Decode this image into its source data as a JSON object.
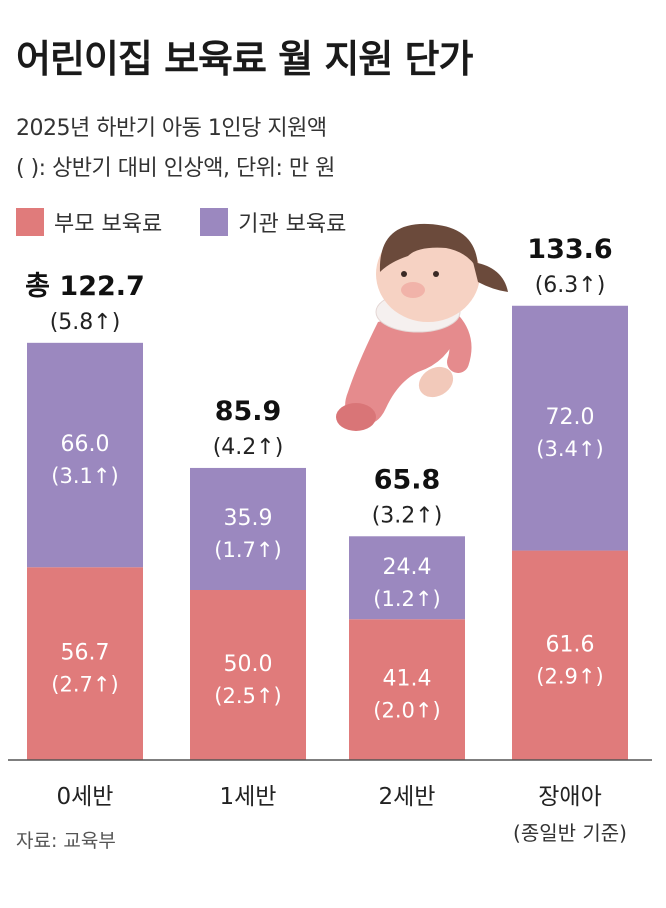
{
  "title": "어린이집 보육료 월 지원 단가",
  "subtitle1": "2025년 하반기 아동 1인당 지원액",
  "subtitle2": "( ): 상반기 대비 인상액, 단위: 만 원",
  "source": "자료: 교육부",
  "colors": {
    "parent": "#e07b7b",
    "institution": "#9b88bf",
    "axis": "#555555"
  },
  "chart_data": {
    "type": "bar",
    "stacked": true,
    "categories": [
      "0세반",
      "1세반",
      "2세반",
      "장애아"
    ],
    "category_notes": [
      "",
      "",
      "",
      "(종일반 기준)"
    ],
    "series": [
      {
        "name": "부모 보육료",
        "values": [
          56.7,
          50.0,
          41.4,
          61.6
        ],
        "increase_labels": [
          "(2.7↑)",
          "(2.5↑)",
          "(2.0↑)",
          "(2.9↑)"
        ],
        "value_labels": [
          "56.7",
          "50.0",
          "41.4",
          "61.6"
        ]
      },
      {
        "name": "기관 보육료",
        "values": [
          66.0,
          35.9,
          24.4,
          72.0
        ],
        "increase_labels": [
          "(3.1↑)",
          "(1.7↑)",
          "(1.2↑)",
          "(3.4↑)"
        ],
        "value_labels": [
          "66.0",
          "35.9",
          "24.4",
          "72.0"
        ]
      }
    ],
    "totals": [
      122.7,
      85.9,
      65.8,
      133.6
    ],
    "total_labels": [
      "총 122.7",
      "85.9",
      "65.8",
      "133.6"
    ],
    "total_increase_labels": [
      "(5.8↑)",
      "(4.2↑)",
      "(3.2↑)",
      "(6.3↑)"
    ],
    "ylim": [
      0,
      150
    ]
  }
}
